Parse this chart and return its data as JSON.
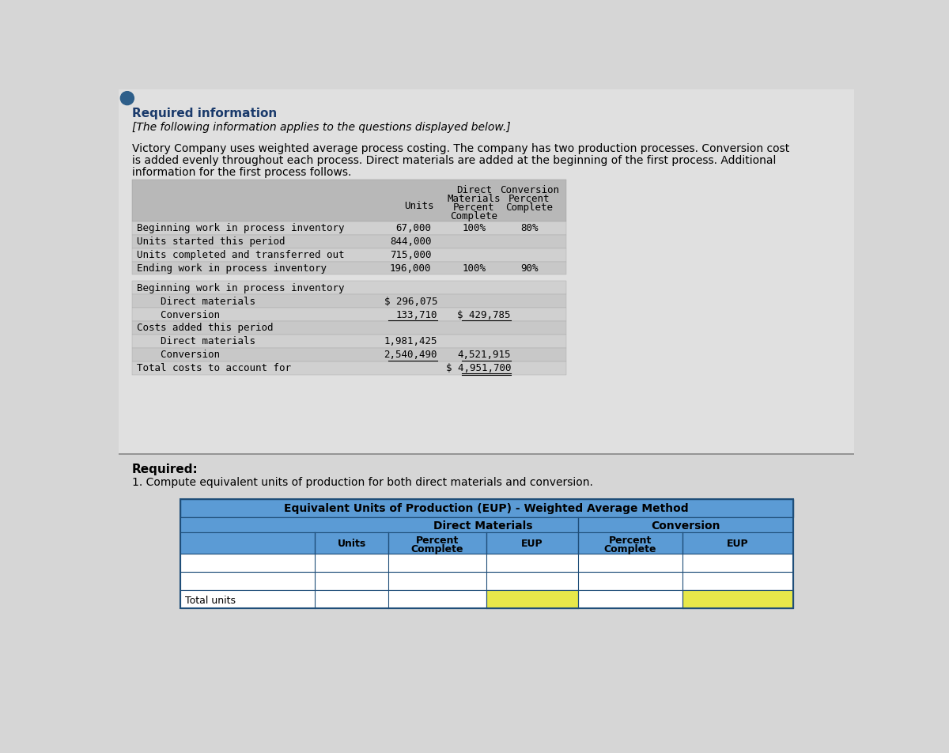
{
  "page_bg": "#d6d6d6",
  "white": "#ffffff",
  "title1": "Required information",
  "title2": "[The following information applies to the questions displayed below.]",
  "para_line1": "Victory Company uses weighted average process costing. The company has two production processes. Conversion cost",
  "para_line2": "is added evenly throughout each process. Direct materials are added at the beginning of the first process. Additional",
  "para_line3": "information for the first process follows.",
  "table1_rows": [
    [
      "Beginning work in process inventory",
      "67,000",
      "100%",
      "80%"
    ],
    [
      "Units started this period",
      "844,000",
      "",
      ""
    ],
    [
      "Units completed and transferred out",
      "715,000",
      "",
      ""
    ],
    [
      "Ending work in process inventory",
      "196,000",
      "100%",
      "90%"
    ]
  ],
  "cost_left_texts": [
    "Beginning work in process inventory",
    "    Direct materials",
    "    Conversion",
    "Costs added this period",
    "    Direct materials",
    "    Conversion",
    "Total costs to account for"
  ],
  "col1_vals": [
    "",
    "$ 296,075",
    "133,710",
    "",
    "1,981,425",
    "2,540,490",
    ""
  ],
  "col2_vals": [
    "",
    "",
    "$ 429,785",
    "",
    "",
    "4,521,915",
    "$ 4,951,700"
  ],
  "required_label": "Required:",
  "required_item": "1. Compute equivalent units of production for both direct materials and conversion.",
  "eup_title": "Equivalent Units of Production (EUP) - Weighted Average Method",
  "header_bg": "#5b9bd5",
  "eup_row_bg": "#ffffff",
  "eup_total_bg_eup": "#e8e84a",
  "eup_border": "#1f4e79",
  "table_header_bg": "#b8b8b8",
  "table_row_bg1": "#d0d0d0",
  "table_row_bg2": "#c8c8c8"
}
